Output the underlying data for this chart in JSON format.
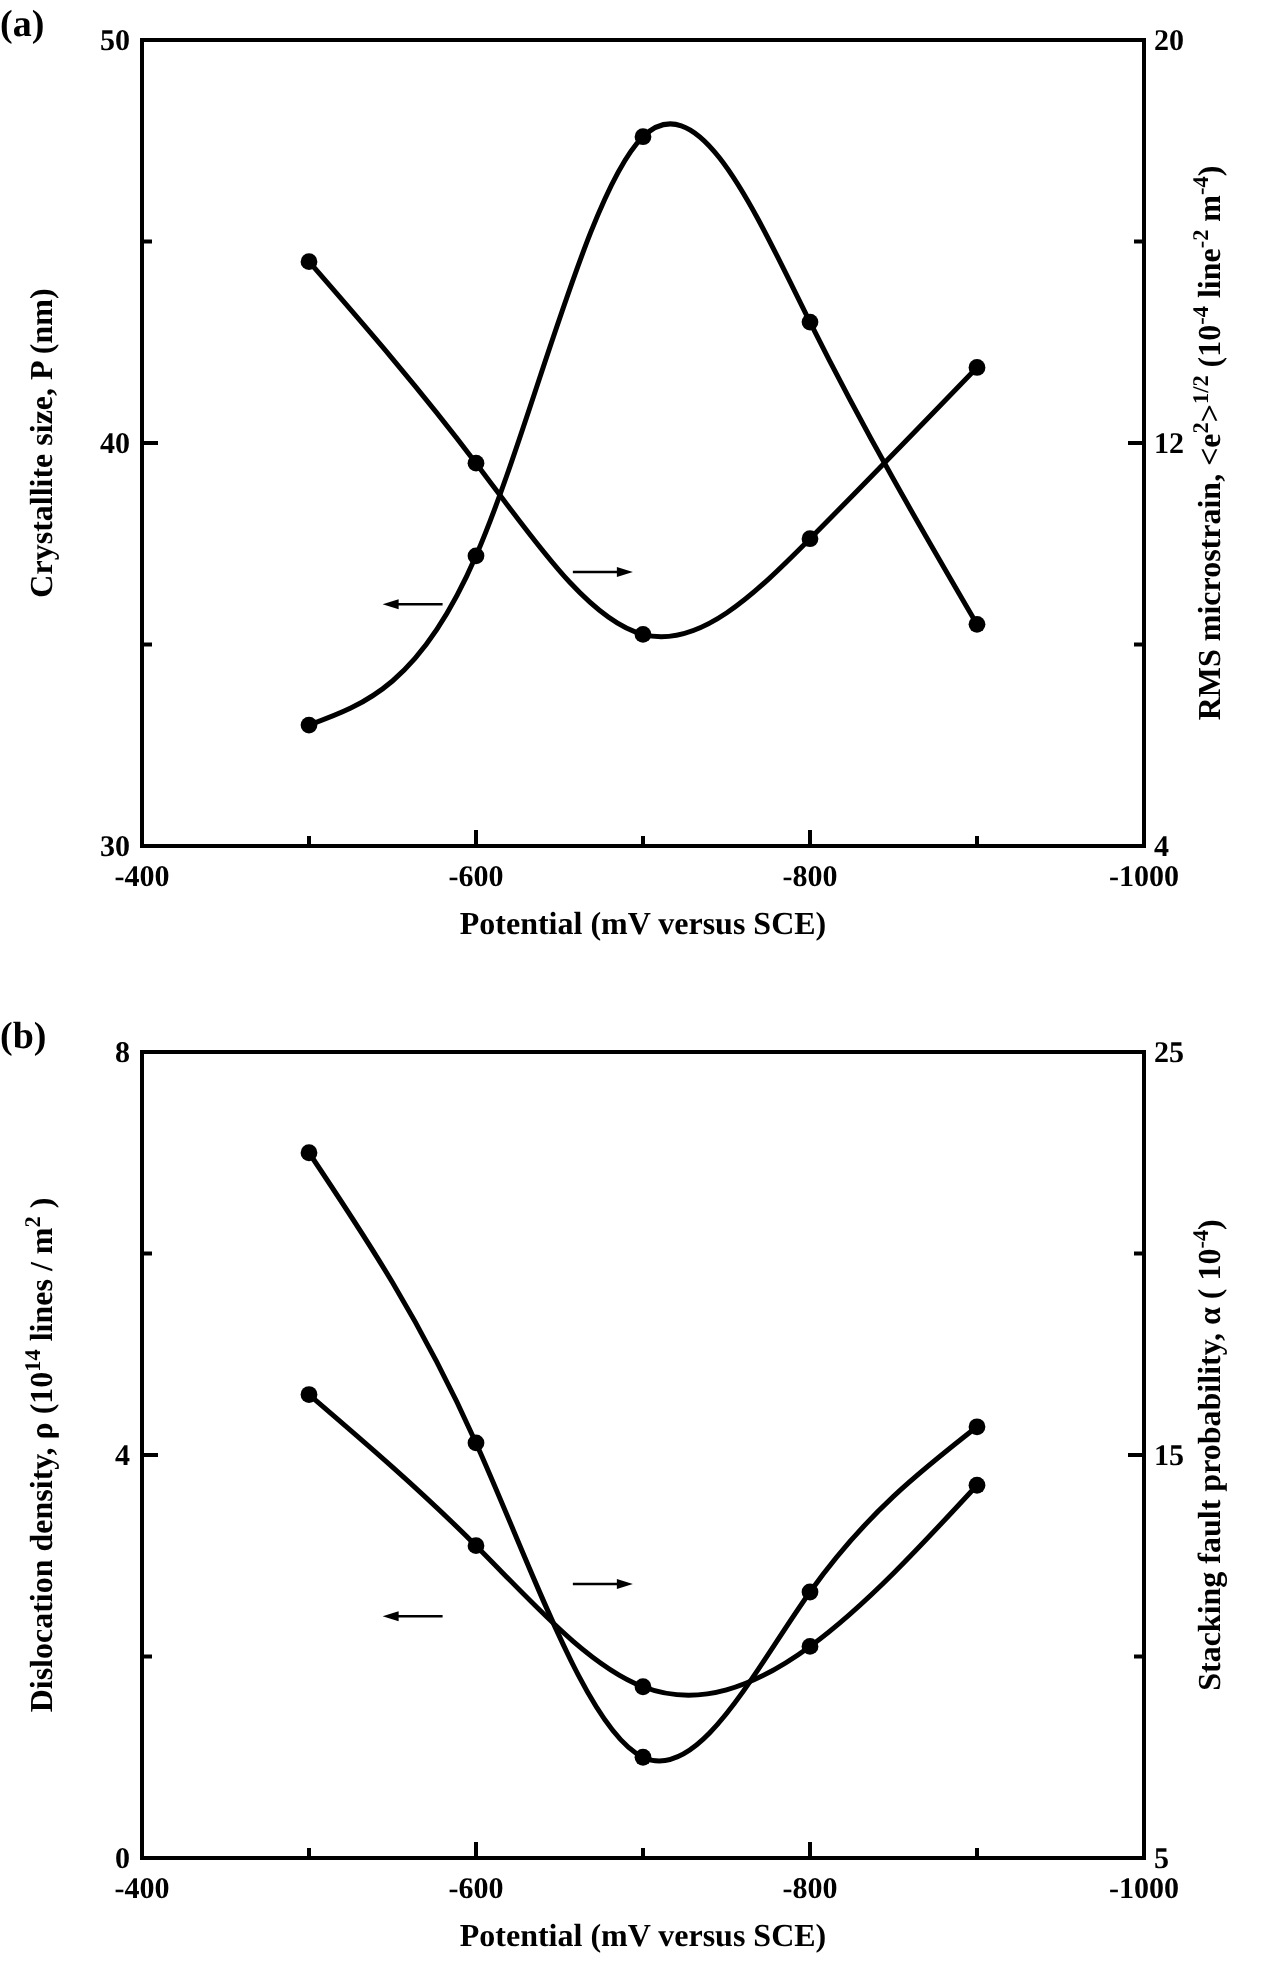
{
  "chart_data": [
    {
      "type": "line",
      "title": "(a)",
      "xlabel": "Potential (mV versus SCE)",
      "ylabel": "Crystallite size, P (nm)",
      "y2label": "RMS microstrain, <e$^{2}$>$^{1/2}$ (10$^{-4}$ line$^{-2}$ m$^{-4}$)",
      "x": [
        -500,
        -600,
        -700,
        -800,
        -900
      ],
      "xlim": [
        -400,
        -1000
      ],
      "xticks": [
        -400,
        {
          "value": -500,
          "label": null
        },
        -600,
        {
          "value": -700,
          "label": null
        },
        -800,
        {
          "value": -900,
          "label": null
        },
        -1000
      ],
      "ylim": [
        30,
        50
      ],
      "yticks": [
        30,
        {
          "value": 35,
          "label": null
        },
        40,
        {
          "value": 45,
          "label": null
        },
        50
      ],
      "y2lim": [
        4,
        20
      ],
      "y2ticks": [
        4,
        {
          "value": 8,
          "label": null
        },
        12,
        {
          "value": 16,
          "label": null
        },
        20
      ],
      "marker": "circle",
      "grid": false,
      "series": [
        {
          "color": "#000000",
          "axis": "y",
          "values": [
            33.0,
            37.2,
            47.6,
            43.0,
            35.5
          ]
        },
        {
          "color": "#000000",
          "axis": "y2",
          "values": [
            15.6,
            11.6,
            8.2,
            10.1,
            13.5
          ]
        }
      ]
    },
    {
      "type": "line",
      "title": "(b)",
      "xlabel": "Potential (mV versus SCE)",
      "ylabel": "Dislocation density, ρ (10$^{14}$ lines / m$^{2}$ )",
      "y2label": "Stacking fault probability, α ( 10$^{-4}$)",
      "x": [
        -500,
        -600,
        -700,
        -800,
        -900
      ],
      "xlim": [
        -400,
        -1000
      ],
      "xticks": [
        -400,
        {
          "value": -500,
          "label": null
        },
        -600,
        {
          "value": -700,
          "label": null
        },
        -800,
        {
          "value": -900,
          "label": null
        },
        -1000
      ],
      "ylim": [
        0,
        8
      ],
      "yticks": [
        0,
        {
          "value": 2,
          "label": null
        },
        4,
        {
          "value": 6,
          "label": null
        },
        8
      ],
      "y2lim": [
        5,
        25
      ],
      "y2ticks": [
        5,
        {
          "value": 10,
          "label": null
        },
        15,
        {
          "value": 20,
          "label": null
        },
        25
      ],
      "marker": "circle",
      "grid": false,
      "series": [
        {
          "color": "#000000",
          "axis": "y",
          "values": [
            4.6,
            3.1,
            1.7,
            2.1,
            3.7
          ]
        },
        {
          "color": "#000000",
          "axis": "y2",
          "values": [
            22.5,
            15.3,
            7.5,
            11.6,
            15.7
          ]
        }
      ]
    }
  ]
}
